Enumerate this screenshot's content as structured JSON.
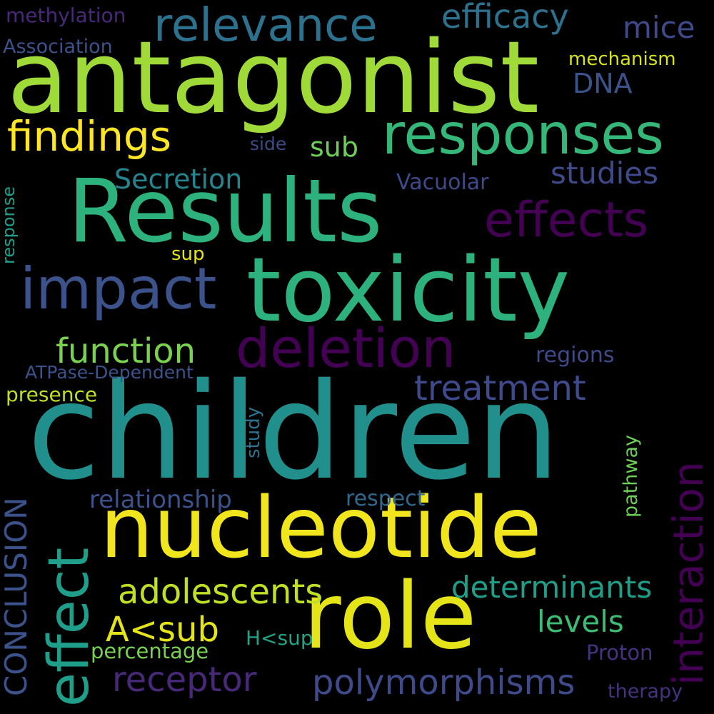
{
  "words": [
    {
      "text": "children",
      "color": "#21908d"
    },
    {
      "text": "antagonist",
      "color": "#a0da39"
    },
    {
      "text": "Results",
      "color": "#2db27d"
    },
    {
      "text": "toxicity",
      "color": "#2db27d"
    },
    {
      "text": "nucleotide",
      "color": "#f1e51d"
    },
    {
      "text": "role",
      "color": "#e5e419"
    },
    {
      "text": "responses",
      "color": "#35b779"
    },
    {
      "text": "relevance",
      "color": "#2c728e"
    },
    {
      "text": "efficacy",
      "color": "#2c728e"
    },
    {
      "text": "effects",
      "color": "#440154"
    },
    {
      "text": "deletion",
      "color": "#440154"
    },
    {
      "text": "impact",
      "color": "#3b528b"
    },
    {
      "text": "findings",
      "color": "#fde725"
    },
    {
      "text": "function",
      "color": "#7ad151"
    },
    {
      "text": "treatment",
      "color": "#3e4a89"
    },
    {
      "text": "interaction",
      "color": "#440154"
    },
    {
      "text": "effect",
      "color": "#1f9e89"
    },
    {
      "text": "CONCLUSION",
      "color": "#3b528b"
    },
    {
      "text": "adolescents",
      "color": "#c0df25"
    },
    {
      "text": "determinants",
      "color": "#1f9e89"
    },
    {
      "text": "polymorphisms",
      "color": "#3e4a89"
    },
    {
      "text": "receptor",
      "color": "#482878"
    },
    {
      "text": "A<sub",
      "color": "#e5e419"
    },
    {
      "text": "levels",
      "color": "#3dbc74"
    },
    {
      "text": "relationship",
      "color": "#3b528b"
    },
    {
      "text": "respect",
      "color": "#31688e"
    },
    {
      "text": "studies",
      "color": "#3e4a89"
    },
    {
      "text": "Secretion",
      "color": "#25858e"
    },
    {
      "text": "sub",
      "color": "#6ece58"
    },
    {
      "text": "DNA",
      "color": "#3b528b"
    },
    {
      "text": "mice",
      "color": "#3e4a89"
    },
    {
      "text": "mechanism",
      "color": "#d8e219"
    },
    {
      "text": "methylation",
      "color": "#482878"
    },
    {
      "text": "Association",
      "color": "#3b528b"
    },
    {
      "text": "side",
      "color": "#3e4a89"
    },
    {
      "text": "Vacuolar",
      "color": "#3e4a89"
    },
    {
      "text": "sup",
      "color": "#e5e419"
    },
    {
      "text": "regions",
      "color": "#3e4a89"
    },
    {
      "text": "ATPase-Dependent",
      "color": "#3b528b"
    },
    {
      "text": "presence",
      "color": "#bddf26"
    },
    {
      "text": "study",
      "color": "#2c728e"
    },
    {
      "text": "pathway",
      "color": "#6ece58"
    },
    {
      "text": "percentage",
      "color": "#7ad151"
    },
    {
      "text": "H<sup",
      "color": "#20a486"
    },
    {
      "text": "Proton",
      "color": "#46327e"
    },
    {
      "text": "therapy",
      "color": "#46327e"
    },
    {
      "text": "response",
      "color": "#1f9e89"
    }
  ]
}
